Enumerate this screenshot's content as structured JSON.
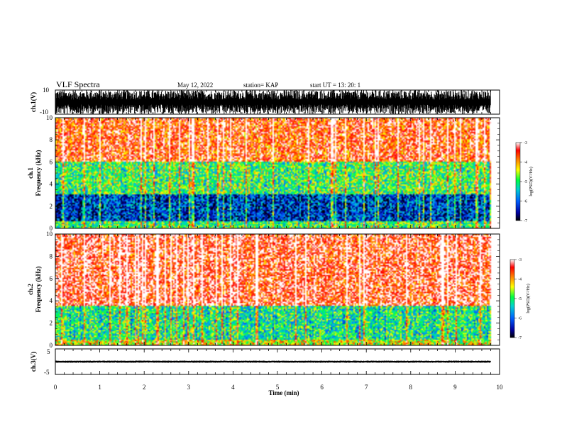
{
  "header": {
    "title": "VLF Spectra",
    "date": "May 12, 2022",
    "station": "station= KAP",
    "start": "start  UT  =   13: 20: 1"
  },
  "chart_data": [
    {
      "type": "line",
      "panel": "ch1-waveform",
      "ylabel": "ch.1(V)",
      "ytick_labels": [
        "10",
        "-10"
      ],
      "ylim": [
        -10,
        10
      ],
      "xlim": [
        0,
        10
      ],
      "x_unit": "min",
      "data_extent_x": [
        0,
        9.8
      ],
      "description_values": {
        "envelope_high": 10,
        "envelope_low": -10
      },
      "color": "#000000"
    },
    {
      "type": "heatmap",
      "panel": "ch1-spectrogram",
      "ylabel": "ch.1\nFrequency (kHz)",
      "ylabel_line1": "ch.1",
      "ylabel_line2": "Frequency (kHz)",
      "yticks": [
        0,
        2,
        4,
        6,
        8,
        10
      ],
      "ylim": [
        0,
        10
      ],
      "xlim": [
        0,
        10
      ],
      "data_extent_x": [
        0,
        9.8
      ],
      "colorbar": {
        "label": "log(PSD)(V²/Hz)",
        "ticks": [
          "-3",
          "-4",
          "-5",
          "-6",
          "-7"
        ],
        "range": [
          -7,
          -3
        ],
        "colormap": [
          "#000000",
          "#0000a0",
          "#0060ff",
          "#00d0d0",
          "#00ff40",
          "#ffff00",
          "#ff8000",
          "#ff0000",
          "#ffffff"
        ]
      },
      "band_profile": [
        {
          "f_range_khz": [
            0,
            0.6
          ],
          "log_psd": -5.0
        },
        {
          "f_range_khz": [
            0.6,
            3.0
          ],
          "log_psd": -6.2
        },
        {
          "f_range_khz": [
            3.0,
            6.0
          ],
          "log_psd": -5.0
        },
        {
          "f_range_khz": [
            6.0,
            10.0
          ],
          "log_psd": -3.6
        }
      ]
    },
    {
      "type": "heatmap",
      "panel": "ch2-spectrogram",
      "ylabel": "ch.2\nFrequency (kHz)",
      "ylabel_line1": "ch.2",
      "ylabel_line2": "Frequency (kHz)",
      "yticks": [
        0,
        2,
        4,
        6,
        8,
        10
      ],
      "ylim": [
        0,
        10
      ],
      "xlim": [
        0,
        10
      ],
      "data_extent_x": [
        0,
        9.8
      ],
      "colorbar": {
        "label": "log(PSD)(V²/Hz)",
        "ticks": [
          "-3",
          "-4",
          "-5",
          "-6",
          "-7"
        ],
        "range": [
          -7,
          -3
        ],
        "colormap": [
          "#000000",
          "#0000a0",
          "#0060ff",
          "#00d0d0",
          "#00ff40",
          "#ffff00",
          "#ff8000",
          "#ff0000",
          "#ffffff"
        ]
      },
      "band_profile": [
        {
          "f_range_khz": [
            0,
            0.5
          ],
          "log_psd": -4.5
        },
        {
          "f_range_khz": [
            0.5,
            3.5
          ],
          "log_psd": -5.2
        },
        {
          "f_range_khz": [
            3.5,
            10.0
          ],
          "log_psd": -3.4
        }
      ]
    },
    {
      "type": "line",
      "panel": "ch3-waveform",
      "ylabel": "ch.3(V)",
      "ytick_labels": [
        "5",
        "-5"
      ],
      "ylim": [
        -6,
        6
      ],
      "xlim": [
        0,
        10
      ],
      "data_extent_x": [
        0,
        9.8
      ],
      "description_values": {
        "envelope_high": 0.5,
        "envelope_low": -0.5
      },
      "xlabel": "Time  (min)",
      "xticks": [
        0,
        1,
        2,
        3,
        4,
        5,
        6,
        7,
        8,
        9,
        10
      ],
      "color": "#000000"
    }
  ]
}
